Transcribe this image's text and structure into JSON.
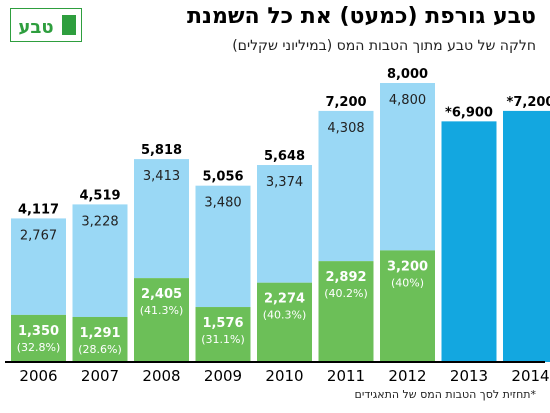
{
  "header": {
    "title": "טבע גורפת (כמעט) את כל השמנת",
    "subtitle": "חלקה של טבע מתוך הטבות המס (במיליוני שקלים)",
    "footnote": "*תחזית לסך הטבות המס של התאגידים",
    "logo_text": "טבע"
  },
  "colors": {
    "total_bar": "#9ad8f5",
    "teva_bar": "#6cbf58",
    "forecast_bar": "#13a7e0",
    "logo_green": "#2e9e3e"
  },
  "chart_data": {
    "type": "bar",
    "categories": [
      "2006",
      "2007",
      "2008",
      "2009",
      "2010",
      "2011",
      "2012",
      "2013",
      "2014"
    ],
    "ylim": [
      0,
      8000
    ],
    "series": [
      {
        "values": [
          1350,
          1291,
          2405,
          1576,
          2274,
          2892,
          3200,
          null,
          null
        ]
      },
      {
        "values": [
          2767,
          3228,
          3413,
          3480,
          3374,
          4308,
          4800,
          null,
          null
        ]
      }
    ],
    "totals": [
      4117,
      4519,
      5818,
      5056,
      5648,
      7200,
      8000,
      6900,
      7200
    ],
    "total_labels": [
      "4,117",
      "4,519",
      "5,818",
      "5,056",
      "5,648",
      "7,200",
      "8,000",
      "*6,900",
      "*7,200"
    ],
    "teva_labels": [
      "1,350",
      "1,291",
      "2,405",
      "1,576",
      "2,274",
      "2,892",
      "3,200",
      "",
      ""
    ],
    "share_labels": [
      "(32.8%)",
      "(28.6%)",
      "(41.3%)",
      "(31.1%)",
      "(40.3%)",
      "(40.2%)",
      "(40%)",
      "",
      ""
    ],
    "rest_labels": [
      "2,767",
      "3,228",
      "3,413",
      "3,480",
      "3,374",
      "4,308",
      "4,800",
      "",
      ""
    ],
    "forecast": [
      false,
      false,
      false,
      false,
      false,
      false,
      false,
      true,
      true
    ],
    "xlabel": "",
    "ylabel": "",
    "grid": false
  }
}
